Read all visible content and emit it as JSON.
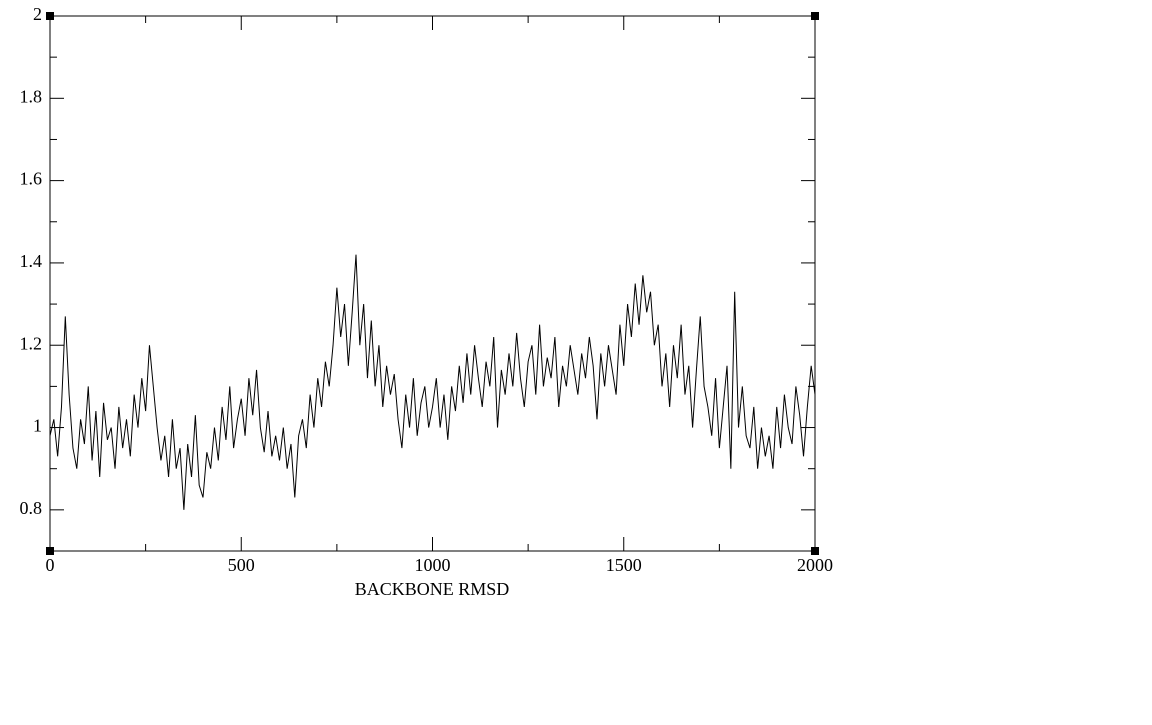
{
  "chart_data": {
    "type": "line",
    "xlabel": "BACKBONE RMSD",
    "color": "#000000",
    "xlim": [
      0,
      2000
    ],
    "xticks": [
      0,
      500,
      1000,
      1500,
      2000
    ],
    "xminor_ticks": [
      250,
      750,
      1250,
      1750
    ],
    "ylim": [
      0.7,
      2
    ],
    "yticks": [
      0.8,
      1,
      1.2,
      1.4,
      1.6,
      1.8,
      2
    ],
    "yminor_ticks": [
      0.7,
      0.9,
      1.1,
      1.3,
      1.5,
      1.7,
      1.9
    ],
    "x": [
      0,
      10,
      20,
      30,
      40,
      50,
      60,
      70,
      80,
      90,
      100,
      110,
      120,
      130,
      140,
      150,
      160,
      170,
      180,
      190,
      200,
      210,
      220,
      230,
      240,
      250,
      260,
      270,
      280,
      290,
      300,
      310,
      320,
      330,
      340,
      350,
      360,
      370,
      380,
      390,
      400,
      410,
      420,
      430,
      440,
      450,
      460,
      470,
      480,
      490,
      500,
      510,
      520,
      530,
      540,
      550,
      560,
      570,
      580,
      590,
      600,
      610,
      620,
      630,
      640,
      650,
      660,
      670,
      680,
      690,
      700,
      710,
      720,
      730,
      740,
      750,
      760,
      770,
      780,
      790,
      800,
      810,
      820,
      830,
      840,
      850,
      860,
      870,
      880,
      890,
      900,
      910,
      920,
      930,
      940,
      950,
      960,
      970,
      980,
      990,
      1000,
      1010,
      1020,
      1030,
      1040,
      1050,
      1060,
      1070,
      1080,
      1090,
      1100,
      1110,
      1120,
      1130,
      1140,
      1150,
      1160,
      1170,
      1180,
      1190,
      1200,
      1210,
      1220,
      1230,
      1240,
      1250,
      1260,
      1270,
      1280,
      1290,
      1300,
      1310,
      1320,
      1330,
      1340,
      1350,
      1360,
      1370,
      1380,
      1390,
      1400,
      1410,
      1420,
      1430,
      1440,
      1450,
      1460,
      1470,
      1480,
      1490,
      1500,
      1510,
      1520,
      1530,
      1540,
      1550,
      1560,
      1570,
      1580,
      1590,
      1600,
      1610,
      1620,
      1630,
      1640,
      1650,
      1660,
      1670,
      1680,
      1690,
      1700,
      1710,
      1720,
      1730,
      1740,
      1750,
      1760,
      1770,
      1780,
      1790,
      1800,
      1810,
      1820,
      1830,
      1840,
      1850,
      1860,
      1870,
      1880,
      1890,
      1900,
      1910,
      1920,
      1930,
      1940,
      1950,
      1960,
      1970,
      1980,
      1990,
      2000
    ],
    "values": [
      0.98,
      1.02,
      0.93,
      1.05,
      1.27,
      1.08,
      0.95,
      0.9,
      1.02,
      0.96,
      1.1,
      0.92,
      1.04,
      0.88,
      1.06,
      0.97,
      1.0,
      0.9,
      1.05,
      0.95,
      1.02,
      0.93,
      1.08,
      1.0,
      1.12,
      1.04,
      1.2,
      1.1,
      1.0,
      0.92,
      0.98,
      0.88,
      1.02,
      0.9,
      0.95,
      0.8,
      0.96,
      0.88,
      1.03,
      0.86,
      0.83,
      0.94,
      0.9,
      1.0,
      0.92,
      1.05,
      0.97,
      1.1,
      0.95,
      1.02,
      1.07,
      0.98,
      1.12,
      1.03,
      1.14,
      1.0,
      0.94,
      1.04,
      0.93,
      0.98,
      0.92,
      1.0,
      0.9,
      0.96,
      0.83,
      0.98,
      1.02,
      0.95,
      1.08,
      1.0,
      1.12,
      1.05,
      1.16,
      1.1,
      1.2,
      1.34,
      1.22,
      1.3,
      1.15,
      1.28,
      1.42,
      1.2,
      1.3,
      1.12,
      1.26,
      1.1,
      1.2,
      1.05,
      1.15,
      1.08,
      1.13,
      1.02,
      0.95,
      1.08,
      1.0,
      1.12,
      0.98,
      1.06,
      1.1,
      1.0,
      1.05,
      1.12,
      1.0,
      1.08,
      0.97,
      1.1,
      1.04,
      1.15,
      1.06,
      1.18,
      1.08,
      1.2,
      1.12,
      1.05,
      1.16,
      1.1,
      1.22,
      1.0,
      1.14,
      1.08,
      1.18,
      1.1,
      1.23,
      1.12,
      1.05,
      1.16,
      1.2,
      1.08,
      1.25,
      1.1,
      1.17,
      1.12,
      1.22,
      1.05,
      1.15,
      1.1,
      1.2,
      1.14,
      1.08,
      1.18,
      1.12,
      1.22,
      1.15,
      1.02,
      1.18,
      1.1,
      1.2,
      1.14,
      1.08,
      1.25,
      1.15,
      1.3,
      1.22,
      1.35,
      1.25,
      1.37,
      1.28,
      1.33,
      1.2,
      1.25,
      1.1,
      1.18,
      1.05,
      1.2,
      1.12,
      1.25,
      1.08,
      1.15,
      1.0,
      1.14,
      1.27,
      1.1,
      1.05,
      0.98,
      1.12,
      0.95,
      1.05,
      1.15,
      0.9,
      1.33,
      1.0,
      1.1,
      0.98,
      0.95,
      1.05,
      0.9,
      1.0,
      0.93,
      0.98,
      0.9,
      1.05,
      0.95,
      1.08,
      1.0,
      0.96,
      1.1,
      1.03,
      0.93,
      1.05,
      1.15,
      1.08
    ]
  }
}
